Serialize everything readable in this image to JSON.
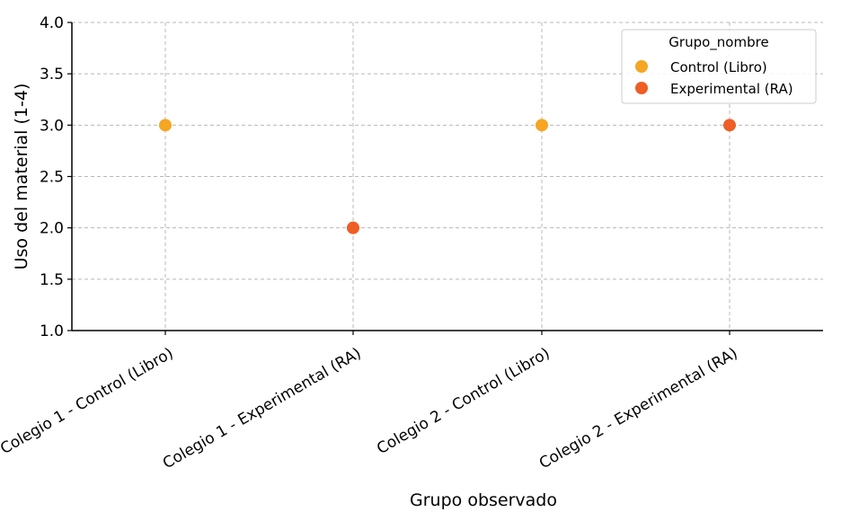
{
  "chart_data": {
    "type": "scatter",
    "title": "",
    "xlabel": "Grupo observado",
    "ylabel": "Uso del material (1-4)",
    "categories": [
      "Colegio 1 - Control (Libro)",
      "Colegio 1 - Experimental (RA)",
      "Colegio 2 - Control (Libro)",
      "Colegio 2 - Experimental (RA)"
    ],
    "ylim": [
      1.0,
      4.0
    ],
    "yticks": [
      "1.0",
      "1.5",
      "2.0",
      "2.5",
      "3.0",
      "3.5",
      "4.0"
    ],
    "grid": true,
    "legend": {
      "title": "Grupo_nombre",
      "placement": "top-right"
    },
    "series": [
      {
        "name": "Control (Libro)",
        "color": "#F5A623",
        "points": [
          {
            "x": "Colegio 1 - Control (Libro)",
            "y": 3.0
          },
          {
            "x": "Colegio 2 - Control (Libro)",
            "y": 3.0
          }
        ]
      },
      {
        "name": "Experimental (RA)",
        "color": "#EE5E25",
        "points": [
          {
            "x": "Colegio 1 - Experimental (RA)",
            "y": 2.0
          },
          {
            "x": "Colegio 2 - Experimental (RA)",
            "y": 3.0
          }
        ]
      }
    ]
  }
}
